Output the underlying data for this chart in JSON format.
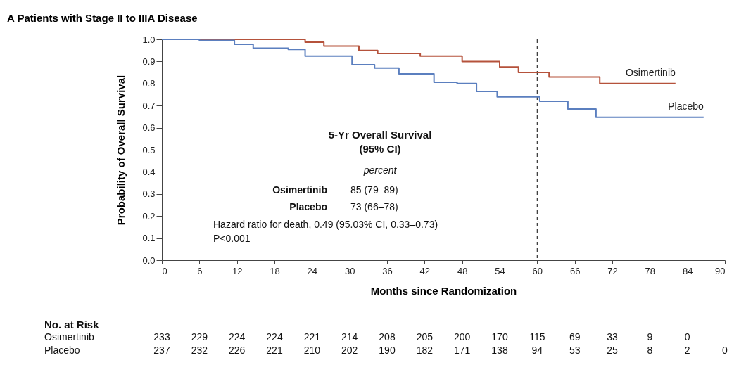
{
  "chart_data": {
    "type": "step",
    "title": "A  Patients with Stage II to IIIA Disease",
    "xlabel": "Months since Randomization",
    "ylabel": "Probability of Overall Survival",
    "xlim": [
      0,
      90
    ],
    "xticks": [
      0,
      6,
      12,
      18,
      24,
      30,
      36,
      42,
      48,
      54,
      60,
      66,
      72,
      78,
      84,
      90
    ],
    "ylim": [
      0,
      1
    ],
    "yticks": [
      {
        "value": 0,
        "label": "0.0"
      },
      {
        "value": 0.1,
        "label": "0.1"
      },
      {
        "value": 0.2,
        "label": "0.2"
      },
      {
        "value": 0.3,
        "label": "0.3"
      },
      {
        "value": 0.4,
        "label": "0.4"
      },
      {
        "value": 0.5,
        "label": "0.5"
      },
      {
        "value": 0.6,
        "label": "0.6"
      },
      {
        "value": 0.7,
        "label": "0.7"
      },
      {
        "value": 0.8,
        "label": "0.8"
      },
      {
        "value": 0.9,
        "label": "0.9"
      },
      {
        "value": 1,
        "label": "1.0"
      }
    ],
    "series": [
      {
        "name": "Osimertinib",
        "color": "#b5523b",
        "x": [
          0,
          22.9,
          25.9,
          31.5,
          34.5,
          41.3,
          48,
          54,
          57,
          61.9,
          70,
          82.1
        ],
        "values": [
          1,
          0.987,
          0.97,
          0.95,
          0.936,
          0.924,
          0.9,
          0.875,
          0.85,
          0.83,
          0.8,
          0.8
        ]
      },
      {
        "name": "Placebo",
        "color": "#5b7fbf",
        "x": [
          0,
          6,
          11.6,
          14.6,
          20.2,
          22.9,
          30.4,
          34,
          37.9,
          43.5,
          47.2,
          50.3,
          53.6,
          60.4,
          64.9,
          69.4,
          86.6
        ],
        "values": [
          1,
          0.995,
          0.978,
          0.96,
          0.955,
          0.924,
          0.885,
          0.87,
          0.844,
          0.806,
          0.8,
          0.764,
          0.74,
          0.72,
          0.685,
          0.647,
          0.647
        ]
      }
    ],
    "ref_lines": [
      {
        "axis": "x",
        "value": 60,
        "color": "#333333",
        "line_style": "dashed"
      }
    ],
    "annotations": [
      "5-Yr Overall Survival",
      "(95% CI)",
      "percent",
      "Osimertinib",
      "85 (79–89)",
      "Placebo",
      "73 (66–78)",
      "Hazard ratio for death, 0.49 (95.03% CI, 0.33–0.73)",
      "P<0.001",
      "No. at Risk",
      "Osimertinib",
      "Placebo",
      "233",
      "229",
      "224",
      "224",
      "221",
      "214",
      "208",
      "205",
      "200",
      "170",
      "115",
      "69",
      "33",
      "9",
      "0",
      "237",
      "232",
      "226",
      "221",
      "210",
      "202",
      "190",
      "182",
      "171",
      "138",
      "94",
      "53",
      "25",
      "8",
      "2",
      "0"
    ],
    "legend": false
  }
}
